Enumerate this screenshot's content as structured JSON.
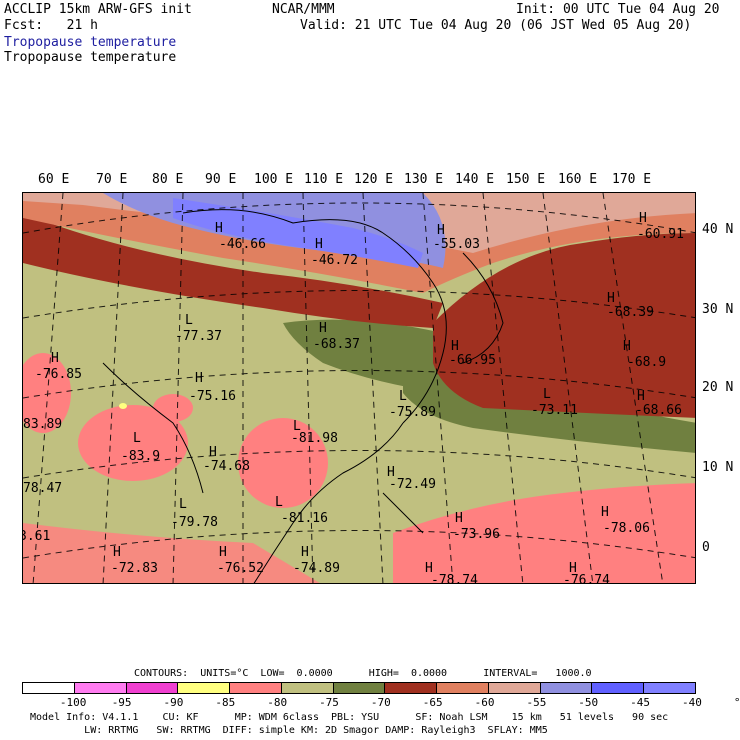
{
  "header": {
    "left1": "ACCLIP 15km ARW-GFS init",
    "left2": "Fcst:   21 h",
    "center": "NCAR/MMM",
    "right1": "Init: 00 UTC Tue 04 Aug 20",
    "right2": "Valid: 21 UTC Tue 04 Aug 20 (06 JST Wed 05 Aug 20)",
    "field1": "Tropopause temperature",
    "field2": "Tropopause temperature"
  },
  "lon_labels": [
    "60 E",
    "70 E",
    "80 E",
    "90 E",
    "100 E",
    "110 E",
    "120 E",
    "130 E",
    "140 E",
    "150 E",
    "160 E",
    "170 E"
  ],
  "lat_labels": [
    "40 N",
    "30 N",
    "20 N",
    "10 N",
    "0"
  ],
  "map_labels": [
    {
      "type": "H",
      "value": "-46.66"
    },
    {
      "type": "H",
      "value": "-46.72"
    },
    {
      "type": "H",
      "value": "-55.03"
    },
    {
      "type": "H",
      "value": "-60.91"
    },
    {
      "type": "L",
      "value": "-77.37"
    },
    {
      "type": "H",
      "value": "-68.37"
    },
    {
      "type": "H",
      "value": "-66.95"
    },
    {
      "type": "H",
      "value": "-68.39"
    },
    {
      "type": "H",
      "value": "-76.85"
    },
    {
      "type": "H",
      "value": "-75.16"
    },
    {
      "type": "L",
      "value": "-75.89"
    },
    {
      "type": "L",
      "value": "-73.11"
    },
    {
      "type": "H",
      "value": "-68.9"
    },
    {
      "type": "H",
      "value": "-68.66"
    },
    {
      "type": "",
      "value": "83.89"
    },
    {
      "type": "L",
      "value": "-83.9"
    },
    {
      "type": "H",
      "value": "-74.68"
    },
    {
      "type": "L",
      "value": "-81.98"
    },
    {
      "type": "H",
      "value": "-72.49"
    },
    {
      "type": "",
      "value": "78.47"
    },
    {
      "type": "L",
      "value": "-79.78"
    },
    {
      "type": "L",
      "value": "-81.16"
    },
    {
      "type": "H",
      "value": "-73.96"
    },
    {
      "type": "H",
      "value": "-78.06"
    },
    {
      "type": "",
      "value": "3.61"
    },
    {
      "type": "H",
      "value": "-72.83"
    },
    {
      "type": "H",
      "value": "-76.52"
    },
    {
      "type": "H",
      "value": "-74.89"
    },
    {
      "type": "H",
      "value": "-78.74"
    },
    {
      "type": "H",
      "value": "-76.74"
    }
  ],
  "contours_line": "CONTOURS:  UNITS=°C  LOW=  0.0000      HIGH=  0.0000      INTERVAL=   1000.0",
  "colorbar": {
    "colors": [
      "#ffffff",
      "#ff7cf0",
      "#f040d0",
      "#ffff80",
      "#ff8080",
      "#c0c080",
      "#708040",
      "#a03020",
      "#e08060",
      "#e0a898",
      "#9090e0",
      "#6060ff",
      "#8080ff"
    ],
    "ticks": [
      "-100",
      "-95",
      "-90",
      "-85",
      "-80",
      "-75",
      "-70",
      "-65",
      "-60",
      "-55",
      "-50",
      "-45",
      "-40",
      "°C"
    ]
  },
  "footer": {
    "line1": "Model Info: V4.1.1    CU: KF      MP: WDM 6class  PBL: YSU      SF: Noah LSM    15 km   51 levels   90 sec",
    "line2": "         LW: RRTMG   SW: RRTMG  DIFF: simple KM: 2D Smagor DAMP: Rayleigh3  SFLAY: MM5"
  }
}
